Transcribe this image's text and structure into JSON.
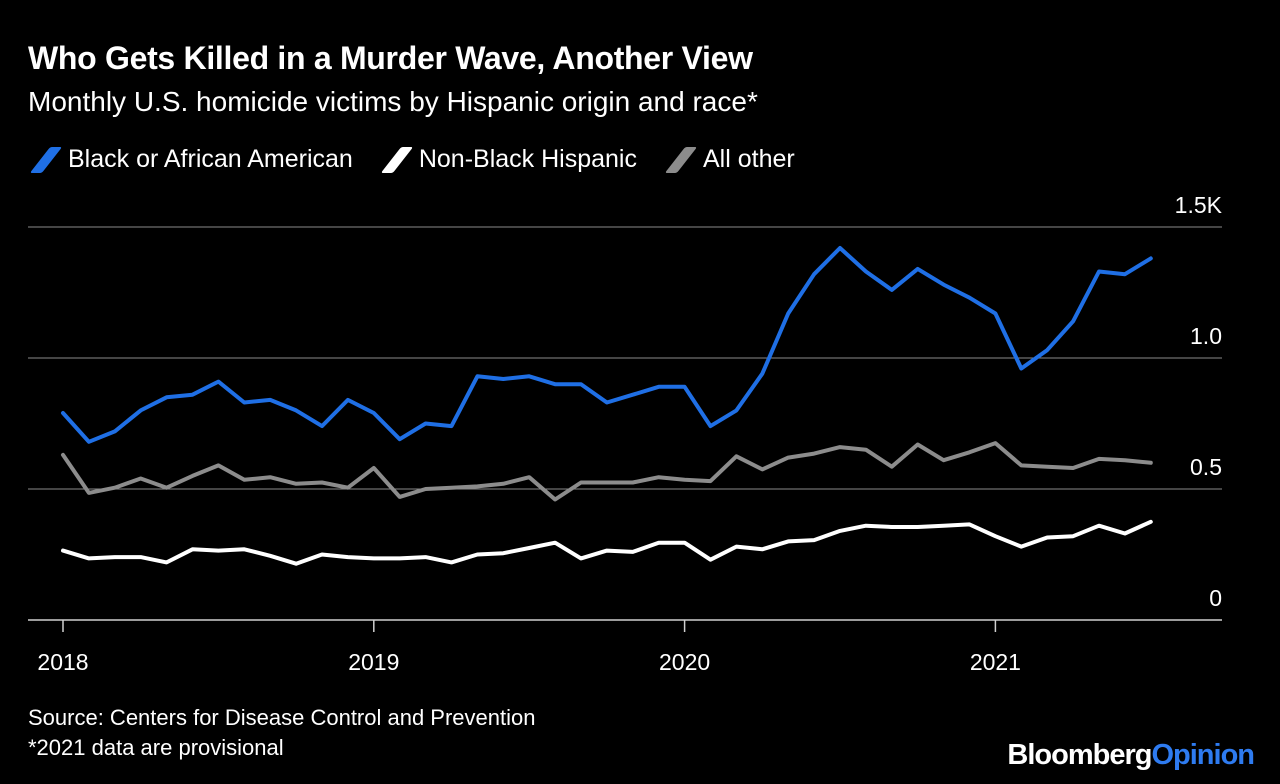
{
  "colors": {
    "background": "#000000",
    "black_series": "#1f6fe5",
    "hispanic_series": "#ffffff",
    "other_series": "#8c8c8c",
    "gridline": "#8a8a8a",
    "brand_accent": "#2e7bf0"
  },
  "header": {
    "title": "Who Gets Killed in a Murder Wave, Another View",
    "subtitle": "Monthly U.S. homicide victims by Hispanic origin and race*"
  },
  "footer": {
    "source": "Source: Centers for Disease Control and Prevention",
    "note": "*2021 data are provisional",
    "brand_part1": "Bloomberg",
    "brand_part2": "Opinion"
  },
  "chart_data": {
    "type": "line",
    "title": "Who Gets Killed in a Murder Wave, Another View",
    "subtitle": "Monthly U.S. homicide victims by Hispanic origin and race*",
    "x": [
      "2018-01",
      "2018-02",
      "2018-03",
      "2018-04",
      "2018-05",
      "2018-06",
      "2018-07",
      "2018-08",
      "2018-09",
      "2018-10",
      "2018-11",
      "2018-12",
      "2019-01",
      "2019-02",
      "2019-03",
      "2019-04",
      "2019-05",
      "2019-06",
      "2019-07",
      "2019-08",
      "2019-09",
      "2019-10",
      "2019-11",
      "2019-12",
      "2020-01",
      "2020-02",
      "2020-03",
      "2020-04",
      "2020-05",
      "2020-06",
      "2020-07",
      "2020-08",
      "2020-09",
      "2020-10",
      "2020-11",
      "2020-12",
      "2021-01",
      "2021-02",
      "2021-03",
      "2021-04",
      "2021-05",
      "2021-06",
      "2021-07"
    ],
    "x_tick_labels": [
      "2018",
      "2019",
      "2020",
      "2021"
    ],
    "y_tick_labels": [
      "0",
      "0.5",
      "1.0",
      "1.5K"
    ],
    "ylim": [
      0,
      1500
    ],
    "grid": true,
    "legend_position": "top-left",
    "series": [
      {
        "name": "Black or African American",
        "color": "#1f6fe5",
        "values": [
          790,
          680,
          720,
          800,
          850,
          860,
          910,
          830,
          840,
          800,
          740,
          840,
          790,
          690,
          750,
          740,
          930,
          920,
          930,
          900,
          900,
          830,
          860,
          890,
          890,
          740,
          800,
          940,
          1170,
          1320,
          1420,
          1330,
          1260,
          1340,
          1280,
          1230,
          1170,
          960,
          1030,
          1140,
          1330,
          1320,
          1380
        ]
      },
      {
        "name": "Non-Black Hispanic",
        "color": "#ffffff",
        "values": [
          265,
          235,
          240,
          240,
          220,
          270,
          265,
          270,
          245,
          215,
          250,
          240,
          235,
          235,
          240,
          220,
          250,
          255,
          275,
          295,
          235,
          265,
          260,
          295,
          295,
          230,
          280,
          270,
          300,
          305,
          340,
          360,
          355,
          355,
          360,
          365,
          320,
          280,
          315,
          320,
          360,
          330,
          375
        ]
      },
      {
        "name": "All other",
        "color": "#8c8c8c",
        "values": [
          630,
          485,
          505,
          540,
          505,
          550,
          590,
          535,
          545,
          520,
          525,
          505,
          580,
          470,
          500,
          505,
          510,
          520,
          545,
          460,
          525,
          525,
          525,
          545,
          535,
          530,
          625,
          575,
          620,
          635,
          660,
          650,
          585,
          670,
          610,
          640,
          675,
          590,
          585,
          580,
          615,
          610,
          600
        ]
      }
    ]
  }
}
